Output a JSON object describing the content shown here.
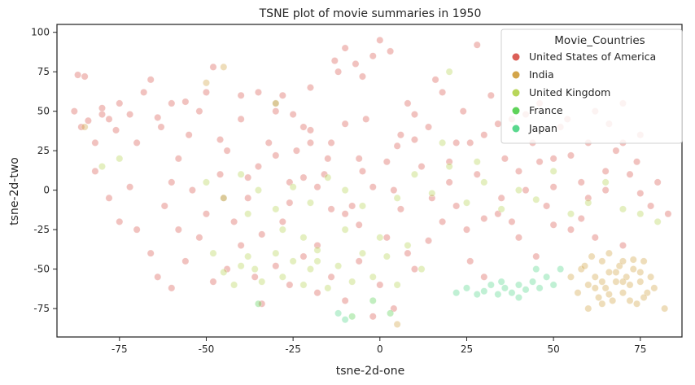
{
  "chart_data": {
    "type": "scatter",
    "title": "TSNE plot of movie summaries in 1950",
    "xlabel": "tsne-2d-one",
    "ylabel": "tsne-2d-two",
    "xlim": [
      -93,
      87
    ],
    "ylim": [
      -93,
      105
    ],
    "x_ticks": [
      -75,
      -50,
      -25,
      0,
      25,
      50,
      75
    ],
    "y_ticks": [
      -75,
      -50,
      -25,
      0,
      25,
      50,
      75,
      100
    ],
    "grid": false,
    "legend": {
      "title": "Movie_Countries",
      "placement": "top-right"
    },
    "series": [
      {
        "name": "United States of America",
        "color": "#db5f57",
        "values_note": "scattered widely across the plot",
        "points": [
          [
            -88,
            50
          ],
          [
            -87,
            73
          ],
          [
            -85,
            72
          ],
          [
            -86,
            40
          ],
          [
            -84,
            44
          ],
          [
            -80,
            52
          ],
          [
            -78,
            45
          ],
          [
            -75,
            55
          ],
          [
            -72,
            48
          ],
          [
            -70,
            30
          ],
          [
            -68,
            62
          ],
          [
            -66,
            70
          ],
          [
            -63,
            40
          ],
          [
            -60,
            55
          ],
          [
            -58,
            20
          ],
          [
            -55,
            35
          ],
          [
            -52,
            50
          ],
          [
            -50,
            62
          ],
          [
            -48,
            78
          ],
          [
            -46,
            10
          ],
          [
            -44,
            25
          ],
          [
            -40,
            45
          ],
          [
            -38,
            -5
          ],
          [
            -35,
            15
          ],
          [
            -32,
            30
          ],
          [
            -30,
            50
          ],
          [
            -28,
            -20
          ],
          [
            -26,
            5
          ],
          [
            -24,
            25
          ],
          [
            -22,
            40
          ],
          [
            -20,
            65
          ],
          [
            -18,
            -35
          ],
          [
            -16,
            10
          ],
          [
            -14,
            30
          ],
          [
            -12,
            75
          ],
          [
            -10,
            90
          ],
          [
            -8,
            -10
          ],
          [
            -6,
            20
          ],
          [
            -4,
            45
          ],
          [
            -2,
            85
          ],
          [
            0,
            95
          ],
          [
            2,
            -30
          ],
          [
            4,
            0
          ],
          [
            6,
            35
          ],
          [
            8,
            55
          ],
          [
            10,
            -50
          ],
          [
            12,
            15
          ],
          [
            14,
            40
          ],
          [
            16,
            70
          ],
          [
            18,
            -20
          ],
          [
            20,
            5
          ],
          [
            22,
            30
          ],
          [
            24,
            50
          ],
          [
            26,
            -45
          ],
          [
            28,
            10
          ],
          [
            30,
            35
          ],
          [
            32,
            60
          ],
          [
            34,
            -15
          ],
          [
            36,
            20
          ],
          [
            38,
            45
          ],
          [
            40,
            -30
          ],
          [
            42,
            0
          ],
          [
            44,
            30
          ],
          [
            46,
            55
          ],
          [
            48,
            -10
          ],
          [
            50,
            20
          ],
          [
            52,
            40
          ],
          [
            55,
            -25
          ],
          [
            58,
            5
          ],
          [
            60,
            30
          ],
          [
            62,
            50
          ],
          [
            65,
            0
          ],
          [
            68,
            25
          ],
          [
            70,
            -35
          ],
          [
            72,
            10
          ],
          [
            75,
            35
          ],
          [
            78,
            -10
          ],
          [
            80,
            5
          ],
          [
            83,
            -15
          ],
          [
            -82,
            12
          ],
          [
            -78,
            -5
          ],
          [
            -75,
            -20
          ],
          [
            -72,
            2
          ],
          [
            -70,
            -25
          ],
          [
            -66,
            -40
          ],
          [
            -64,
            -55
          ],
          [
            -60,
            -62
          ],
          [
            -56,
            -45
          ],
          [
            -52,
            -30
          ],
          [
            -48,
            -58
          ],
          [
            -44,
            -50
          ],
          [
            -40,
            -35
          ],
          [
            -36,
            -55
          ],
          [
            -34,
            -72
          ],
          [
            -30,
            -48
          ],
          [
            -26,
            -60
          ],
          [
            -22,
            -42
          ],
          [
            -18,
            -65
          ],
          [
            -14,
            -55
          ],
          [
            -10,
            -70
          ],
          [
            -6,
            -45
          ],
          [
            -2,
            -80
          ],
          [
            0,
            -60
          ],
          [
            4,
            -75
          ],
          [
            8,
            -40
          ],
          [
            -40,
            60
          ],
          [
            -35,
            62
          ],
          [
            -30,
            55
          ],
          [
            -25,
            48
          ],
          [
            -20,
            38
          ],
          [
            -15,
            20
          ],
          [
            -10,
            -15
          ],
          [
            -5,
            12
          ],
          [
            5,
            28
          ],
          [
            10,
            48
          ],
          [
            15,
            -5
          ],
          [
            20,
            18
          ],
          [
            25,
            -25
          ],
          [
            30,
            -55
          ],
          [
            35,
            -5
          ],
          [
            40,
            12
          ],
          [
            45,
            -42
          ],
          [
            50,
            -22
          ],
          [
            55,
            22
          ],
          [
            60,
            -5
          ],
          [
            65,
            12
          ],
          [
            70,
            30
          ],
          [
            75,
            -2
          ],
          [
            -62,
            -10
          ],
          [
            -58,
            -25
          ],
          [
            -54,
            0
          ],
          [
            -50,
            -15
          ],
          [
            -46,
            32
          ],
          [
            -42,
            -20
          ],
          [
            -38,
            8
          ],
          [
            -34,
            -28
          ],
          [
            -30,
            22
          ],
          [
            -26,
            -8
          ],
          [
            -22,
            8
          ],
          [
            -18,
            2
          ],
          [
            -14,
            -12
          ],
          [
            -10,
            42
          ],
          [
            -6,
            -22
          ],
          [
            -2,
            2
          ],
          [
            2,
            18
          ],
          [
            6,
            -12
          ],
          [
            10,
            32
          ],
          [
            14,
            -32
          ],
          [
            18,
            62
          ],
          [
            22,
            -10
          ],
          [
            26,
            30
          ],
          [
            30,
            -18
          ],
          [
            34,
            42
          ],
          [
            38,
            -20
          ],
          [
            42,
            48
          ],
          [
            46,
            18
          ],
          [
            50,
            2
          ],
          [
            54,
            45
          ],
          [
            58,
            -18
          ],
          [
            62,
            -30
          ],
          [
            66,
            42
          ],
          [
            70,
            55
          ],
          [
            74,
            18
          ],
          [
            -7,
            80
          ],
          [
            -5,
            72
          ],
          [
            3,
            88
          ],
          [
            -13,
            82
          ],
          [
            28,
            92
          ],
          [
            -20,
            30
          ],
          [
            -28,
            60
          ],
          [
            -45,
            -5
          ],
          [
            -60,
            5
          ],
          [
            -80,
            48
          ],
          [
            -82,
            30
          ],
          [
            -76,
            38
          ],
          [
            -64,
            46
          ],
          [
            -56,
            56
          ]
        ]
      },
      {
        "name": "India",
        "color": "#d3a54a",
        "values_note": "clustered near the lower right",
        "points": [
          [
            58,
            -50
          ],
          [
            60,
            -60
          ],
          [
            62,
            -55
          ],
          [
            64,
            -45
          ],
          [
            65,
            -62
          ],
          [
            66,
            -52
          ],
          [
            67,
            -70
          ],
          [
            68,
            -58
          ],
          [
            69,
            -48
          ],
          [
            70,
            -65
          ],
          [
            71,
            -55
          ],
          [
            72,
            -60
          ],
          [
            73,
            -50
          ],
          [
            74,
            -72
          ],
          [
            75,
            -58
          ],
          [
            76,
            -45
          ],
          [
            77,
            -65
          ],
          [
            78,
            -55
          ],
          [
            63,
            -68
          ],
          [
            61,
            -42
          ],
          [
            66,
            -40
          ],
          [
            70,
            -45
          ],
          [
            72,
            -70
          ],
          [
            60,
            -75
          ],
          [
            64,
            -58
          ],
          [
            68,
            -52
          ],
          [
            75,
            -52
          ],
          [
            79,
            -62
          ],
          [
            82,
            -75
          ],
          [
            55,
            -55
          ],
          [
            57,
            -65
          ],
          [
            59,
            -48
          ],
          [
            70,
            -58
          ],
          [
            66,
            -66
          ],
          [
            62,
            -62
          ],
          [
            73,
            -44
          ],
          [
            76,
            -68
          ],
          [
            64,
            -72
          ],
          [
            -85,
            40
          ],
          [
            -45,
            78
          ],
          [
            -50,
            68
          ],
          [
            5,
            -85
          ]
        ]
      },
      {
        "name": "United Kingdom",
        "color": "#b8d65a",
        "values_note": "scattered, denser in lower middle",
        "points": [
          [
            -48,
            -40
          ],
          [
            -45,
            -52
          ],
          [
            -42,
            -60
          ],
          [
            -40,
            -48
          ],
          [
            -38,
            -42
          ],
          [
            -36,
            -50
          ],
          [
            -34,
            -58
          ],
          [
            -30,
            -40
          ],
          [
            -28,
            -55
          ],
          [
            -25,
            -45
          ],
          [
            -22,
            -60
          ],
          [
            -20,
            -50
          ],
          [
            -18,
            -38
          ],
          [
            -15,
            -62
          ],
          [
            -12,
            -48
          ],
          [
            -8,
            -58
          ],
          [
            -5,
            -40
          ],
          [
            -2,
            -55
          ],
          [
            2,
            -42
          ],
          [
            5,
            -60
          ],
          [
            8,
            -35
          ],
          [
            12,
            -50
          ],
          [
            -50,
            5
          ],
          [
            -45,
            -5
          ],
          [
            -40,
            10
          ],
          [
            -35,
            0
          ],
          [
            -30,
            -12
          ],
          [
            -25,
            2
          ],
          [
            -20,
            -8
          ],
          [
            -15,
            8
          ],
          [
            -10,
            0
          ],
          [
            -5,
            -10
          ],
          [
            5,
            -5
          ],
          [
            10,
            10
          ],
          [
            15,
            -2
          ],
          [
            20,
            15
          ],
          [
            25,
            -8
          ],
          [
            30,
            5
          ],
          [
            35,
            -12
          ],
          [
            40,
            0
          ],
          [
            45,
            -6
          ],
          [
            50,
            12
          ],
          [
            55,
            -15
          ],
          [
            60,
            -8
          ],
          [
            65,
            5
          ],
          [
            70,
            -12
          ],
          [
            75,
            -15
          ],
          [
            80,
            -20
          ],
          [
            -80,
            15
          ],
          [
            -75,
            20
          ],
          [
            -30,
            55
          ],
          [
            20,
            75
          ],
          [
            28,
            18
          ],
          [
            18,
            30
          ],
          [
            -18,
            -45
          ],
          [
            -22,
            -30
          ],
          [
            -28,
            -25
          ],
          [
            -38,
            -15
          ],
          [
            -10,
            -25
          ],
          [
            0,
            -30
          ]
        ]
      },
      {
        "name": "France",
        "color": "#5fd35a",
        "values_note": "sparse",
        "points": [
          [
            -8,
            -80
          ],
          [
            -2,
            -70
          ],
          [
            3,
            -78
          ],
          [
            -35,
            -72
          ]
        ]
      },
      {
        "name": "Japan",
        "color": "#5ad88e",
        "values_note": "cluster near bottom middle-right",
        "points": [
          [
            22,
            -65
          ],
          [
            25,
            -62
          ],
          [
            28,
            -66
          ],
          [
            30,
            -64
          ],
          [
            32,
            -60
          ],
          [
            34,
            -66
          ],
          [
            36,
            -62
          ],
          [
            38,
            -65
          ],
          [
            40,
            -60
          ],
          [
            42,
            -63
          ],
          [
            44,
            -58
          ],
          [
            46,
            -62
          ],
          [
            48,
            -55
          ],
          [
            50,
            -60
          ],
          [
            52,
            -50
          ],
          [
            45,
            -50
          ],
          [
            40,
            -68
          ],
          [
            35,
            -58
          ],
          [
            -12,
            -78
          ],
          [
            -10,
            -82
          ]
        ]
      }
    ]
  }
}
